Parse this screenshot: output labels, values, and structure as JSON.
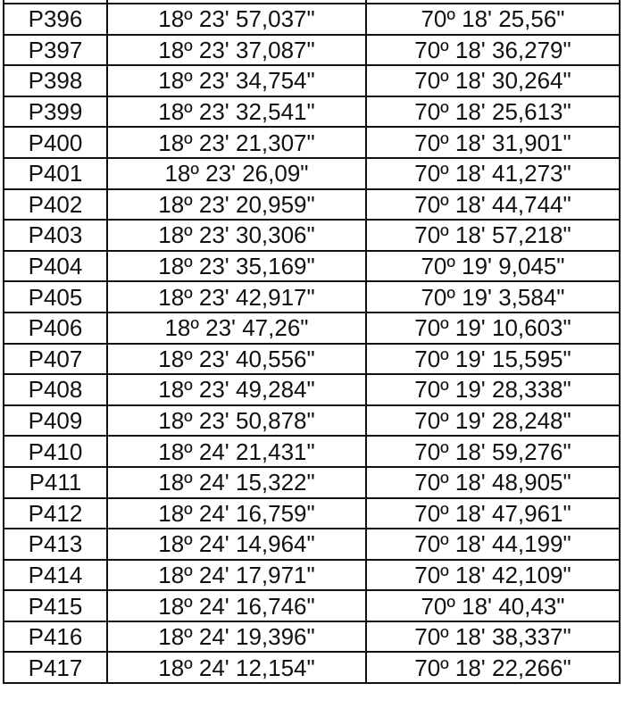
{
  "rows": [
    {
      "point": "P396",
      "lat": "18º 23' 57,037\"",
      "lon": "70º 18' 25,56\""
    },
    {
      "point": "P397",
      "lat": "18º 23' 37,087\"",
      "lon": "70º 18' 36,279\""
    },
    {
      "point": "P398",
      "lat": "18º 23' 34,754\"",
      "lon": "70º 18' 30,264\""
    },
    {
      "point": "P399",
      "lat": "18º 23' 32,541\"",
      "lon": "70º 18' 25,613\""
    },
    {
      "point": "P400",
      "lat": "18º 23' 21,307\"",
      "lon": "70º 18' 31,901\""
    },
    {
      "point": "P401",
      "lat": "18º 23' 26,09\"",
      "lon": "70º 18' 41,273\""
    },
    {
      "point": "P402",
      "lat": "18º 23' 20,959\"",
      "lon": "70º 18' 44,744\""
    },
    {
      "point": "P403",
      "lat": "18º 23' 30,306\"",
      "lon": "70º 18' 57,218\""
    },
    {
      "point": "P404",
      "lat": "18º 23' 35,169\"",
      "lon": "70º 19' 9,045\""
    },
    {
      "point": "P405",
      "lat": "18º 23' 42,917\"",
      "lon": "70º 19' 3,584\""
    },
    {
      "point": "P406",
      "lat": "18º 23' 47,26\"",
      "lon": "70º 19' 10,603\""
    },
    {
      "point": "P407",
      "lat": "18º 23' 40,556\"",
      "lon": "70º 19' 15,595\""
    },
    {
      "point": "P408",
      "lat": "18º 23' 49,284\"",
      "lon": "70º 19' 28,338\""
    },
    {
      "point": "P409",
      "lat": "18º 23' 50,878\"",
      "lon": "70º 19' 28,248\""
    },
    {
      "point": "P410",
      "lat": "18º 24' 21,431\"",
      "lon": "70º 18' 59,276\""
    },
    {
      "point": "P411",
      "lat": "18º 24' 15,322\"",
      "lon": "70º 18' 48,905\""
    },
    {
      "point": "P412",
      "lat": "18º 24' 16,759\"",
      "lon": "70º 18' 47,961\""
    },
    {
      "point": "P413",
      "lat": "18º 24' 14,964\"",
      "lon": "70º 18' 44,199\""
    },
    {
      "point": "P414",
      "lat": "18º 24' 17,971\"",
      "lon": "70º 18' 42,109\""
    },
    {
      "point": "P415",
      "lat": "18º 24' 16,746\"",
      "lon": "70º 18' 40,43\""
    },
    {
      "point": "P416",
      "lat": "18º 24' 19,396\"",
      "lon": "70º 18' 38,337\""
    },
    {
      "point": "P417",
      "lat": "18º 24' 12,154\"",
      "lon": "70º 18' 22,266\""
    }
  ]
}
